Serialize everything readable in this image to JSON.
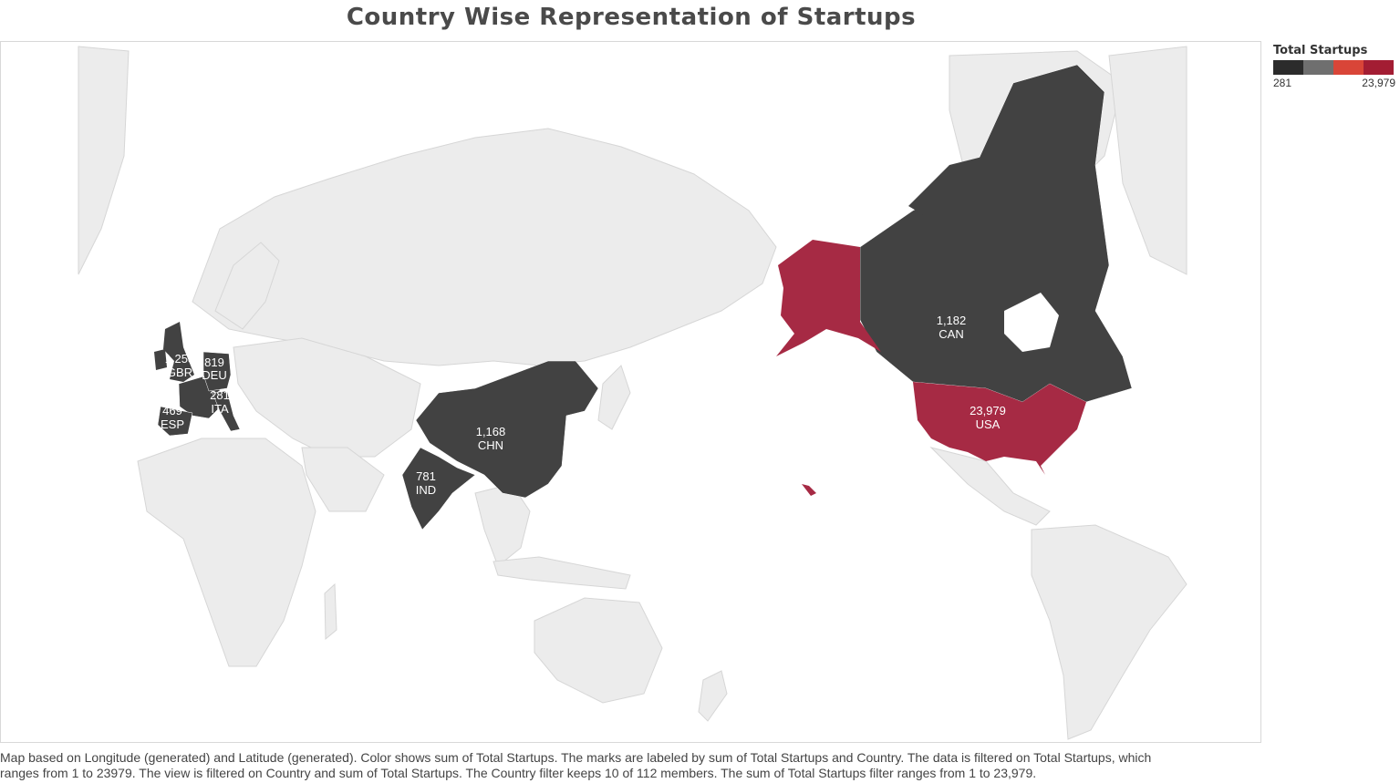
{
  "title": "Country Wise Representation of Startups",
  "legend": {
    "title": "Total Startups",
    "min_label": "281",
    "max_label": "23,979",
    "colors": [
      "#2b2b2b",
      "#6f6f6f",
      "#d94538",
      "#a31d33"
    ]
  },
  "colors": {
    "land": "#ececec",
    "border": "#d6d6d6",
    "ocean": "#ffffff",
    "low": "#424242",
    "high": "#a62a44"
  },
  "countries": [
    {
      "code": "USA",
      "value_label": "23,979",
      "value": 23979
    },
    {
      "code": "CAN",
      "value_label": "1,182",
      "value": 1182
    },
    {
      "code": "CHN",
      "value_label": "1,168",
      "value": 1168
    },
    {
      "code": "IND",
      "value_label": "781",
      "value": 781
    },
    {
      "code": "GBR",
      "value_label": "1,258",
      "value": 1258
    },
    {
      "code": "DEU",
      "value_label": "819",
      "value": 819
    },
    {
      "code": "ESP",
      "value_label": "469",
      "value": 469
    },
    {
      "code": "ITA",
      "value_label": "281",
      "value": 281
    }
  ],
  "footnote": [
    "Map based on Longitude (generated) and Latitude (generated).  Color shows sum of Total Startups.  The marks are labeled by sum of Total Startups and Country. The data is filtered on Total Startups, which",
    "ranges from 1 to 23979. The view is filtered on Country and sum of Total Startups. The Country filter keeps 10 of 112 members. The sum of Total Startups filter ranges from 1 to 23,979."
  ]
}
